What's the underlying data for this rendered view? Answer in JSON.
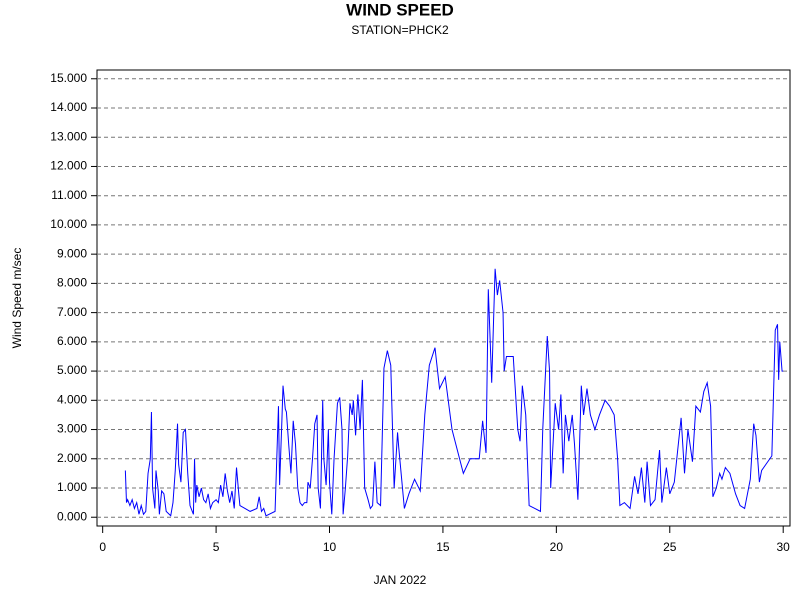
{
  "chart_data": {
    "type": "line",
    "title": "WIND SPEED",
    "subtitle": "STATION=PHCK2",
    "xlabel": "JAN 2022",
    "ylabel": "Wind Speed m/sec",
    "xlim": [
      -0.25,
      30.3
    ],
    "xticks": [
      0,
      5,
      10,
      15,
      20,
      25,
      30
    ],
    "ylim": [
      -0.3,
      15.3
    ],
    "yticks": [
      {
        "value": 0,
        "label": "0.000"
      },
      {
        "value": 1,
        "label": "1.000"
      },
      {
        "value": 2,
        "label": "2.000"
      },
      {
        "value": 3,
        "label": "3.000"
      },
      {
        "value": 4,
        "label": "4.000"
      },
      {
        "value": 5,
        "label": "5.000"
      },
      {
        "value": 6,
        "label": "6.000"
      },
      {
        "value": 7,
        "label": "7.000"
      },
      {
        "value": 8,
        "label": "8.000"
      },
      {
        "value": 9,
        "label": "9.000"
      },
      {
        "value": 10,
        "label": "10.000"
      },
      {
        "value": 11,
        "label": "11.000"
      },
      {
        "value": 12,
        "label": "12.000"
      },
      {
        "value": 13,
        "label": "13.000"
      },
      {
        "value": 14,
        "label": "14.000"
      },
      {
        "value": 15,
        "label": "15.000"
      }
    ],
    "grid": true,
    "x": [
      1.0,
      1.05,
      1.1,
      1.2,
      1.3,
      1.4,
      1.5,
      1.6,
      1.7,
      1.8,
      1.9,
      2.0,
      2.1,
      2.15,
      2.2,
      2.3,
      2.35,
      2.45,
      2.5,
      2.6,
      2.7,
      2.8,
      3.0,
      3.1,
      3.2,
      3.3,
      3.35,
      3.45,
      3.55,
      3.65,
      3.75,
      3.85,
      4.0,
      4.05,
      4.1,
      4.15,
      4.25,
      4.35,
      4.45,
      4.55,
      4.65,
      4.75,
      4.85,
      5.0,
      5.1,
      5.2,
      5.3,
      5.4,
      5.5,
      5.6,
      5.7,
      5.8,
      5.9,
      6.0,
      6.05,
      6.5,
      6.8,
      6.9,
      7.0,
      7.1,
      7.2,
      7.6,
      7.75,
      7.8,
      7.9,
      7.95,
      8.05,
      8.1,
      8.2,
      8.3,
      8.4,
      8.5,
      8.6,
      8.7,
      8.8,
      8.9,
      9.0,
      9.05,
      9.15,
      9.25,
      9.35,
      9.45,
      9.5,
      9.6,
      9.7,
      9.75,
      9.85,
      9.95,
      10.0,
      10.1,
      10.2,
      10.35,
      10.45,
      10.55,
      10.6,
      10.7,
      10.8,
      10.9,
      11.0,
      11.05,
      11.15,
      11.25,
      11.35,
      11.45,
      11.55,
      11.7,
      11.8,
      11.9,
      12.0,
      12.1,
      12.25,
      12.4,
      12.55,
      12.7,
      12.85,
      13.0,
      13.05,
      13.3,
      13.5,
      13.75,
      14.0,
      14.2,
      14.4,
      14.65,
      14.85,
      15.1,
      15.4,
      15.9,
      16.2,
      16.6,
      16.75,
      16.9,
      17.0,
      17.15,
      17.3,
      17.4,
      17.5,
      17.65,
      17.7,
      17.8,
      18.1,
      18.3,
      18.4,
      18.5,
      18.65,
      18.8,
      19.05,
      19.3,
      19.4,
      19.6,
      19.7,
      19.75,
      19.95,
      20.1,
      20.2,
      20.3,
      20.4,
      20.55,
      20.7,
      20.8,
      20.95,
      21.1,
      21.2,
      21.35,
      21.5,
      21.7,
      21.9,
      22.15,
      22.35,
      22.55,
      22.7,
      22.8,
      23.0,
      23.25,
      23.45,
      23.6,
      23.75,
      23.9,
      24.0,
      24.15,
      24.35,
      24.55,
      24.65,
      24.85,
      25.0,
      25.2,
      25.35,
      25.5,
      25.65,
      25.8,
      26.0,
      26.15,
      26.35,
      26.5,
      26.65,
      26.8,
      26.9,
      27.05,
      27.2,
      27.3,
      27.45,
      27.65,
      27.9,
      28.1,
      28.3,
      28.55,
      28.7,
      28.8,
      28.95,
      29.05,
      29.5,
      29.65,
      29.75,
      29.8,
      29.85,
      29.95,
      30.0
    ],
    "series": [
      {
        "name": "Wind Speed",
        "color": "#0000ff",
        "values": [
          1.6,
          0.5,
          0.6,
          0.4,
          0.6,
          0.3,
          0.5,
          0.1,
          0.4,
          0.1,
          0.2,
          1.5,
          2.0,
          3.6,
          1.0,
          0.3,
          1.6,
          0.9,
          0.1,
          0.9,
          0.8,
          0.2,
          0.05,
          0.5,
          1.6,
          3.2,
          1.8,
          1.2,
          2.9,
          3.0,
          1.5,
          0.4,
          0.1,
          2.0,
          0.5,
          1.1,
          0.7,
          1.0,
          0.6,
          0.5,
          0.8,
          0.3,
          0.5,
          0.6,
          0.5,
          1.1,
          0.7,
          1.5,
          0.9,
          0.5,
          0.9,
          0.3,
          1.7,
          0.8,
          0.4,
          0.2,
          0.3,
          0.7,
          0.2,
          0.3,
          0.05,
          0.2,
          3.8,
          1.1,
          3.3,
          4.5,
          3.7,
          3.6,
          2.5,
          1.5,
          3.3,
          2.5,
          1.0,
          0.5,
          0.4,
          0.5,
          0.5,
          1.2,
          1.0,
          2.0,
          3.2,
          3.5,
          1.0,
          0.3,
          4.0,
          2.0,
          1.1,
          3.0,
          1.2,
          0.1,
          2.0,
          3.9,
          4.1,
          3.0,
          0.1,
          1.0,
          2.1,
          3.9,
          3.5,
          4.0,
          2.8,
          4.2,
          3.0,
          4.7,
          1.0,
          0.6,
          0.3,
          0.4,
          1.9,
          0.5,
          0.4,
          5.1,
          5.7,
          5.2,
          1.0,
          2.9,
          2.4,
          0.3,
          0.8,
          1.3,
          0.9,
          3.5,
          5.2,
          5.8,
          4.4,
          4.8,
          3.0,
          1.5,
          2.0,
          2.0,
          3.3,
          2.2,
          7.8,
          4.6,
          8.5,
          7.6,
          8.1,
          7.0,
          5.0,
          5.5,
          5.5,
          3.0,
          2.6,
          4.5,
          3.5,
          0.4,
          0.3,
          0.2,
          3.0,
          6.2,
          5.0,
          1.0,
          3.9,
          3.0,
          4.2,
          1.5,
          3.5,
          2.6,
          3.5,
          2.5,
          0.6,
          4.5,
          3.5,
          4.4,
          3.5,
          3.0,
          3.5,
          4.0,
          3.8,
          3.5,
          2.0,
          0.4,
          0.5,
          0.3,
          1.4,
          0.8,
          1.7,
          0.5,
          1.9,
          0.4,
          0.6,
          2.3,
          0.5,
          1.7,
          0.8,
          1.2,
          2.3,
          3.4,
          1.5,
          3.0,
          1.9,
          3.8,
          3.6,
          4.3,
          4.6,
          3.8,
          0.7,
          1.0,
          1.5,
          1.3,
          1.7,
          1.5,
          0.8,
          0.4,
          0.3,
          1.3,
          3.2,
          2.8,
          1.2,
          1.6,
          2.1,
          6.4,
          6.6,
          4.7,
          6.0,
          5.0,
          5.0
        ]
      }
    ]
  }
}
